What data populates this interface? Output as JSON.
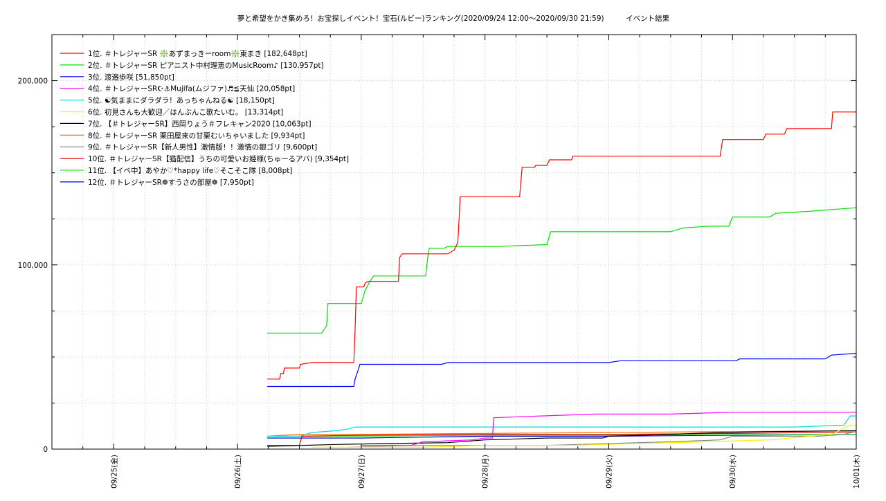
{
  "chart_data": {
    "type": "line",
    "title": "夢と希望をかき集めろ！お宝探しイベント！宝石(ルビー)ランキング(2020/09/24 12:00～2020/09/30 21:59)　　　イベント結果",
    "xlabel": "",
    "ylabel": "",
    "grid": true,
    "legend_position": "top-left",
    "xlim": [
      0,
      6.5
    ],
    "ylim": [
      0,
      225000
    ],
    "x_ticks": [
      {
        "value": 0.5,
        "label": "09/25(金)"
      },
      {
        "value": 1.5,
        "label": "09/26(土)"
      },
      {
        "value": 2.5,
        "label": "09/27(日)"
      },
      {
        "value": 3.5,
        "label": "09/28(月)"
      },
      {
        "value": 4.5,
        "label": "09/29(火)"
      },
      {
        "value": 5.5,
        "label": "09/30(水)"
      },
      {
        "value": 6.5,
        "label": "10/01(木)"
      }
    ],
    "y_ticks": [
      {
        "value": 0,
        "label": "0"
      },
      {
        "value": 100000,
        "label": "100,000"
      },
      {
        "value": 200000,
        "label": "200,000"
      }
    ],
    "series": [
      {
        "name": "1位. ＃トレジャーSR ❇️あずまっきーroom❇️東まき [182,648pt]",
        "color": "#ff0000",
        "points": [
          [
            1.74,
            38000
          ],
          [
            1.84,
            38000
          ],
          [
            1.85,
            41000
          ],
          [
            1.87,
            41000
          ],
          [
            1.88,
            44000
          ],
          [
            2.0,
            44000
          ],
          [
            2.01,
            46000
          ],
          [
            2.1,
            47000
          ],
          [
            2.44,
            47000
          ],
          [
            2.45,
            65000
          ],
          [
            2.46,
            88000
          ],
          [
            2.52,
            88000
          ],
          [
            2.53,
            90000
          ],
          [
            2.55,
            91000
          ],
          [
            2.8,
            91000
          ],
          [
            2.81,
            104000
          ],
          [
            2.83,
            106000
          ],
          [
            3.2,
            106000
          ],
          [
            3.25,
            108000
          ],
          [
            3.28,
            112000
          ],
          [
            3.3,
            137000
          ],
          [
            3.78,
            137000
          ],
          [
            3.8,
            153000
          ],
          [
            3.9,
            153000
          ],
          [
            3.91,
            154000
          ],
          [
            4.0,
            154000
          ],
          [
            4.02,
            157000
          ],
          [
            4.2,
            157000
          ],
          [
            4.21,
            159000
          ],
          [
            5.4,
            159000
          ],
          [
            5.42,
            168000
          ],
          [
            5.75,
            168000
          ],
          [
            5.77,
            171000
          ],
          [
            5.92,
            171000
          ],
          [
            5.94,
            174000
          ],
          [
            6.3,
            174000
          ],
          [
            6.31,
            183000
          ],
          [
            6.5,
            183000
          ]
        ]
      },
      {
        "name": "2位. ＃トレジャーSR ピアニスト中村理恵のMusicRoom♪ [130,957pt]",
        "color": "#00dd00",
        "points": [
          [
            1.74,
            63000
          ],
          [
            2.18,
            63000
          ],
          [
            2.22,
            67000
          ],
          [
            2.23,
            79000
          ],
          [
            2.5,
            79000
          ],
          [
            2.53,
            86000
          ],
          [
            2.57,
            91000
          ],
          [
            2.6,
            94000
          ],
          [
            3.02,
            94000
          ],
          [
            3.04,
            106000
          ],
          [
            3.05,
            109000
          ],
          [
            3.17,
            109000
          ],
          [
            3.2,
            110000
          ],
          [
            3.6,
            110000
          ],
          [
            4.0,
            111000
          ],
          [
            4.03,
            118000
          ],
          [
            5.0,
            118000
          ],
          [
            5.1,
            120000
          ],
          [
            5.3,
            121000
          ],
          [
            5.47,
            121000
          ],
          [
            5.5,
            126000
          ],
          [
            5.8,
            126000
          ],
          [
            5.85,
            128000
          ],
          [
            6.1,
            129000
          ],
          [
            6.5,
            131000
          ]
        ]
      },
      {
        "name": "3位. 渡邉歩咲 [51,850pt]",
        "color": "#0000ff",
        "points": [
          [
            1.74,
            34000
          ],
          [
            2.44,
            34000
          ],
          [
            2.45,
            38000
          ],
          [
            2.47,
            42000
          ],
          [
            2.49,
            46000
          ],
          [
            3.0,
            46000
          ],
          [
            3.15,
            46000
          ],
          [
            3.2,
            47000
          ],
          [
            4.5,
            47000
          ],
          [
            4.6,
            48000
          ],
          [
            5.53,
            48000
          ],
          [
            5.56,
            49000
          ],
          [
            6.25,
            49000
          ],
          [
            6.3,
            51000
          ],
          [
            6.5,
            52000
          ]
        ]
      },
      {
        "name": "4位. ＃トレジャーSR☪⚓Mujifa(ムジファ)♬≦天仙 [20,058pt]",
        "color": "#ff00ff",
        "points": [
          [
            2.5,
            2000
          ],
          [
            2.9,
            2000
          ],
          [
            3.0,
            4000
          ],
          [
            3.4,
            5000
          ],
          [
            3.5,
            6000
          ],
          [
            3.56,
            6000
          ],
          [
            3.57,
            17000
          ],
          [
            3.95,
            18000
          ],
          [
            4.4,
            19000
          ],
          [
            5.0,
            19000
          ],
          [
            5.5,
            20000
          ],
          [
            6.5,
            20000
          ]
        ]
      },
      {
        "name": "5位. ☯気ままにダラダラ！あっちゃんねる☯ [18,150pt]",
        "color": "#00dddd",
        "points": [
          [
            1.74,
            7000
          ],
          [
            2.0,
            7000
          ],
          [
            2.1,
            9000
          ],
          [
            2.3,
            10000
          ],
          [
            2.4,
            11000
          ],
          [
            2.45,
            12000
          ],
          [
            4.0,
            12000
          ],
          [
            5.6,
            12000
          ],
          [
            6.0,
            12000
          ],
          [
            6.4,
            13000
          ],
          [
            6.45,
            18000
          ],
          [
            6.5,
            18000
          ]
        ]
      },
      {
        "name": "6位. 初見さんも大歓迎／はんぶんこ歌たいむ。 [13,314pt]",
        "color": "#ffee00",
        "points": [
          [
            2.1,
            1000
          ],
          [
            3.0,
            1000
          ],
          [
            3.5,
            2000
          ],
          [
            4.2,
            2000
          ],
          [
            4.7,
            3000
          ],
          [
            5.3,
            4000
          ],
          [
            5.8,
            5000
          ],
          [
            6.3,
            8000
          ],
          [
            6.45,
            13000
          ],
          [
            6.5,
            13000
          ]
        ]
      },
      {
        "name": "7位. 【＃トレジャーSR】西岡りょう＃フレキャン2020 [10,063pt]",
        "color": "#000000",
        "points": [
          [
            1.74,
            1500
          ],
          [
            2.3,
            2500
          ],
          [
            2.7,
            3000
          ],
          [
            3.2,
            3500
          ],
          [
            3.5,
            5000
          ],
          [
            4.0,
            6000
          ],
          [
            4.45,
            6000
          ],
          [
            4.5,
            7000
          ],
          [
            5.0,
            8000
          ],
          [
            5.4,
            9000
          ],
          [
            5.8,
            9500
          ],
          [
            6.5,
            10000
          ]
        ]
      },
      {
        "name": "8位. ＃トレジャーSR 栗田屋来の甘栗むいちゃいました [9,934pt]",
        "color": "#ff6600",
        "points": [
          [
            1.74,
            7000
          ],
          [
            2.0,
            8000
          ],
          [
            2.5,
            8000
          ],
          [
            3.5,
            8500
          ],
          [
            4.5,
            9000
          ],
          [
            5.5,
            9500
          ],
          [
            6.5,
            9900
          ]
        ]
      },
      {
        "name": "9位. ＃トレジャーSR【新人男性】激情版！！激情の銀ゴリ [9,600pt]",
        "color": "#888888",
        "points": [
          [
            2.4,
            1000
          ],
          [
            2.9,
            2000
          ],
          [
            3.5,
            2000
          ],
          [
            4.0,
            2000
          ],
          [
            4.5,
            3000
          ],
          [
            5.0,
            4000
          ],
          [
            5.4,
            5000
          ],
          [
            5.5,
            7000
          ],
          [
            6.2,
            7000
          ],
          [
            6.4,
            8000
          ],
          [
            6.5,
            9600
          ]
        ]
      },
      {
        "name": "10位. ＃トレジャーSR【猫配信】うちの可愛いお姫様(ちゅーるアバ) [9,354pt]",
        "color": "#dd0000",
        "points": [
          [
            1.74,
            2000
          ],
          [
            2.0,
            2000
          ],
          [
            2.02,
            7000
          ],
          [
            2.5,
            7500
          ],
          [
            3.5,
            8000
          ],
          [
            4.5,
            8000
          ],
          [
            5.5,
            8500
          ],
          [
            6.5,
            9300
          ]
        ]
      },
      {
        "name": "11位. 【イベ中】あやか♡*happy life♡そこそこ隊 [8,008pt]",
        "color": "#33dd33",
        "points": [
          [
            1.74,
            7000
          ],
          [
            2.5,
            7000
          ],
          [
            3.5,
            7500
          ],
          [
            4.5,
            7500
          ],
          [
            5.5,
            7800
          ],
          [
            6.5,
            8000
          ]
        ]
      },
      {
        "name": "12位. ＃トレジャーSR❁すうさの部屋❁ [7,950pt]",
        "color": "#0000cc",
        "points": [
          [
            1.74,
            6000
          ],
          [
            2.5,
            6000
          ],
          [
            3.0,
            6500
          ],
          [
            3.5,
            7000
          ],
          [
            4.5,
            7000
          ],
          [
            5.5,
            7500
          ],
          [
            6.5,
            7950
          ]
        ]
      }
    ]
  }
}
